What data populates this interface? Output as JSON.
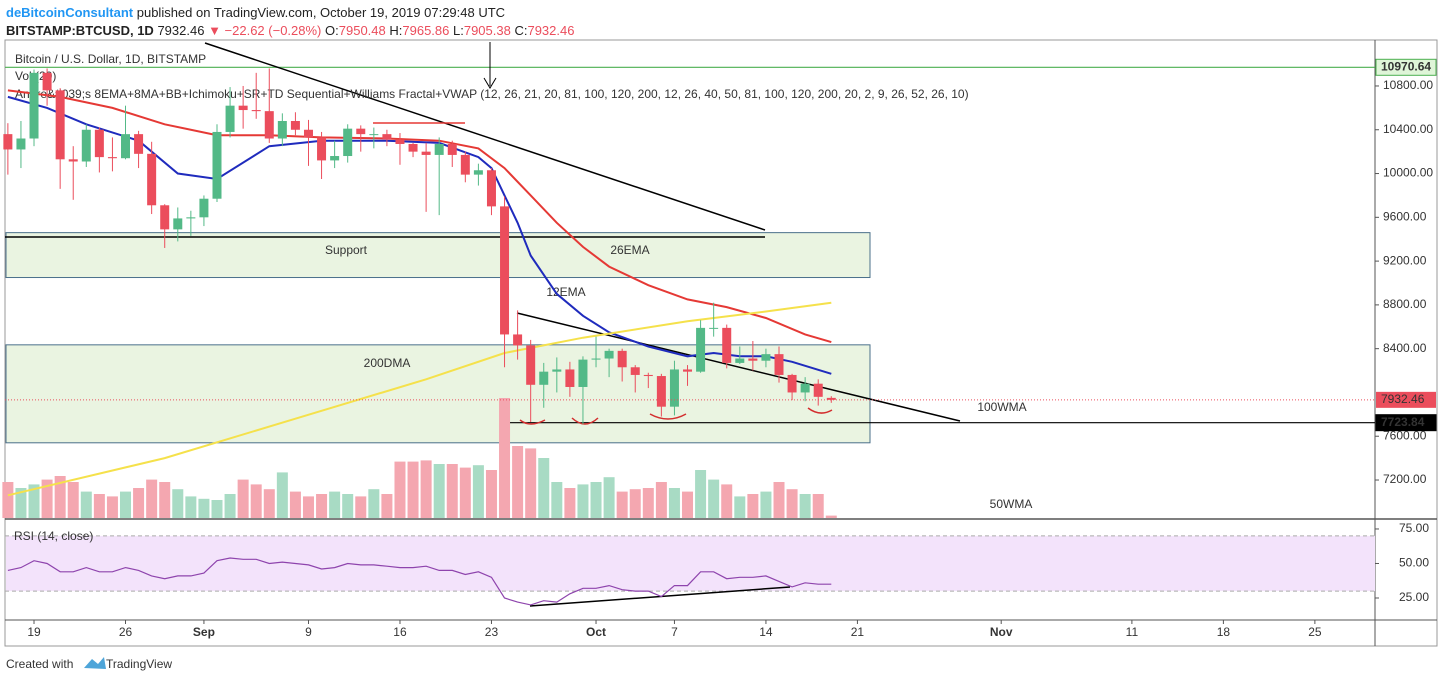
{
  "header": {
    "author": "deBitcoinConsultant",
    "published": "published on TradingView.com, October 19, 2019 07:29:48 UTC",
    "symbol": "BITSTAMP:BTCUSD, 1D",
    "last": "7932.46",
    "change": "▼ −22.62 (−0.28%)",
    "ohlc": [
      {
        "k": "O:",
        "v": "7950.48"
      },
      {
        "k": "H:",
        "v": "7965.86"
      },
      {
        "k": "L:",
        "v": "7905.38"
      },
      {
        "k": "C:",
        "v": "7932.46"
      }
    ]
  },
  "legend": [
    "Bitcoin / U.S. Dollar, 1D, BITSTAMP",
    "Vol (20)",
    "Andre&#039;s 8EMA+8MA+BB+Ichimoku+SR+TD Sequential+Williams Fractal+VWAP (12, 26, 21, 20, 81, 100, 120, 200, 12, 26, 40, 50, 81, 100, 120, 200, 20, 2, 9, 26, 52, 26, 10)"
  ],
  "footer": {
    "created": "Created with",
    "brand": "TradingView"
  },
  "chart_data": {
    "type": "candlestick",
    "up_color": "#53b987",
    "down_color": "#eb4d5c",
    "x": [
      -2,
      -1,
      0,
      1,
      2,
      3,
      4,
      5,
      6,
      7,
      8,
      9,
      10,
      11,
      12,
      13,
      14,
      15,
      16,
      17,
      18,
      19,
      20,
      21,
      22,
      23,
      24,
      25,
      26,
      27,
      28,
      29,
      30,
      31,
      32,
      33,
      34,
      35,
      36,
      37,
      38,
      39,
      40,
      41,
      42,
      43,
      44,
      45,
      46,
      47,
      48,
      49,
      50,
      51,
      52,
      53,
      54,
      55,
      56,
      57,
      58,
      59,
      60,
      61
    ],
    "ohlc": [
      [
        10360,
        10460,
        9990,
        10220
      ],
      [
        10220,
        10480,
        10050,
        10320
      ],
      [
        10320,
        10950,
        10250,
        10920
      ],
      [
        10920,
        10960,
        10620,
        10760
      ],
      [
        10760,
        10780,
        9860,
        10130
      ],
      [
        10130,
        10250,
        9760,
        10110
      ],
      [
        10110,
        10450,
        10060,
        10400
      ],
      [
        10400,
        10420,
        10010,
        10150
      ],
      [
        10150,
        10330,
        10020,
        10140
      ],
      [
        10140,
        10620,
        10130,
        10360
      ],
      [
        10360,
        10390,
        10050,
        10180
      ],
      [
        10180,
        10290,
        9630,
        9710
      ],
      [
        9710,
        9720,
        9320,
        9490
      ],
      [
        9490,
        9690,
        9380,
        9590
      ],
      [
        9590,
        9660,
        9430,
        9600
      ],
      [
        9600,
        9800,
        9520,
        9770
      ],
      [
        9770,
        10450,
        9740,
        10380
      ],
      [
        10380,
        10790,
        10330,
        10620
      ],
      [
        10620,
        10800,
        10410,
        10580
      ],
      [
        10580,
        10920,
        10500,
        10570
      ],
      [
        10570,
        10960,
        10280,
        10320
      ],
      [
        10320,
        10550,
        10250,
        10480
      ],
      [
        10480,
        10560,
        10350,
        10400
      ],
      [
        10400,
        10490,
        10070,
        10330
      ],
      [
        10330,
        10380,
        9950,
        10120
      ],
      [
        10120,
        10300,
        10050,
        10160
      ],
      [
        10160,
        10450,
        10100,
        10410
      ],
      [
        10410,
        10440,
        10200,
        10360
      ],
      [
        10360,
        10420,
        10230,
        10360
      ],
      [
        10360,
        10400,
        10250,
        10310
      ],
      [
        10310,
        10370,
        10080,
        10270
      ],
      [
        10270,
        10280,
        10150,
        10200
      ],
      [
        10200,
        10280,
        9650,
        10170
      ],
      [
        10170,
        10330,
        9620,
        10270
      ],
      [
        10270,
        10300,
        10060,
        10170
      ],
      [
        10170,
        10200,
        9920,
        9990
      ],
      [
        9990,
        10090,
        9890,
        10030
      ],
      [
        10030,
        10050,
        9620,
        9700
      ],
      [
        9700,
        9790,
        8230,
        8530
      ],
      [
        8530,
        8750,
        8300,
        8430
      ],
      [
        8430,
        8480,
        7730,
        8070
      ],
      [
        8070,
        8270,
        7860,
        8190
      ],
      [
        8190,
        8320,
        8000,
        8210
      ],
      [
        8210,
        8280,
        7960,
        8050
      ],
      [
        8050,
        8330,
        7710,
        8300
      ],
      [
        8300,
        8510,
        8230,
        8310
      ],
      [
        8310,
        8400,
        8140,
        8380
      ],
      [
        8380,
        8400,
        8100,
        8230
      ],
      [
        8230,
        8250,
        8000,
        8160
      ],
      [
        8160,
        8180,
        8040,
        8150
      ],
      [
        8150,
        8170,
        7780,
        7870
      ],
      [
        7870,
        8290,
        7790,
        8210
      ],
      [
        8210,
        8250,
        8060,
        8190
      ],
      [
        8190,
        8660,
        8180,
        8590
      ],
      [
        8590,
        8820,
        8510,
        8590
      ],
      [
        8590,
        8620,
        8220,
        8270
      ],
      [
        8270,
        8420,
        8260,
        8310
      ],
      [
        8310,
        8470,
        8200,
        8290
      ],
      [
        8290,
        8400,
        8230,
        8350
      ],
      [
        8350,
        8420,
        8090,
        8160
      ],
      [
        8160,
        8170,
        7930,
        8000
      ],
      [
        8000,
        8140,
        7920,
        8080
      ],
      [
        8080,
        8120,
        7880,
        7960
      ],
      [
        7950.48,
        7965.86,
        7905.38,
        7932.46
      ]
    ],
    "volume": [
      30,
      25,
      28,
      32,
      35,
      30,
      22,
      20,
      18,
      22,
      25,
      32,
      30,
      24,
      18,
      16,
      15,
      20,
      32,
      28,
      24,
      38,
      22,
      18,
      20,
      22,
      20,
      18,
      24,
      20,
      47,
      47,
      48,
      45,
      45,
      42,
      44,
      40,
      100,
      60,
      58,
      50,
      30,
      25,
      28,
      30,
      34,
      22,
      24,
      25,
      30,
      25,
      22,
      40,
      32,
      28,
      18,
      20,
      22,
      30,
      24,
      20,
      20,
      2
    ],
    "rsi": [
      45,
      47,
      52,
      50,
      44,
      44,
      47,
      44,
      44,
      47,
      45,
      41,
      39,
      41,
      41,
      43,
      52,
      54,
      53,
      53,
      50,
      51,
      50,
      49,
      46,
      47,
      50,
      49,
      49,
      48,
      47,
      47,
      48,
      45,
      45,
      42,
      44,
      40,
      25,
      22,
      20,
      23,
      22,
      28,
      32,
      32,
      34,
      31,
      30,
      30,
      26,
      34,
      34,
      44,
      44,
      39,
      40,
      40,
      41,
      37,
      33,
      36,
      35,
      35
    ],
    "series": [
      {
        "name": "12EMA",
        "color": "#1f2bbd",
        "x": [
          -2,
          1,
          4,
          8,
          11,
          14,
          18,
          22,
          27,
          31,
          34,
          35,
          36,
          37,
          38,
          40,
          42,
          44,
          47,
          50,
          52,
          54,
          56,
          58,
          61
        ],
        "values": [
          10700,
          10600,
          10450,
          10300,
          10000,
          9950,
          10250,
          10300,
          10300,
          10280,
          10150,
          10050,
          9800,
          9550,
          9250,
          8900,
          8700,
          8550,
          8420,
          8330,
          8360,
          8330,
          8330,
          8280,
          8170
        ]
      },
      {
        "name": "26EMA",
        "color": "#e53935",
        "x": [
          -2,
          2,
          6,
          10,
          14,
          18,
          22,
          27,
          31,
          34,
          36,
          38,
          40,
          42,
          44,
          47,
          50,
          53,
          56,
          59,
          61
        ],
        "values": [
          10760,
          10700,
          10600,
          10450,
          10350,
          10350,
          10330,
          10320,
          10300,
          10230,
          10050,
          9800,
          9550,
          9330,
          9150,
          8980,
          8850,
          8780,
          8680,
          8530,
          8460
        ]
      },
      {
        "name": "200DMA",
        "color": "#f5e14b",
        "x": [
          -2,
          10,
          20,
          30,
          36,
          42,
          50,
          56,
          61
        ],
        "values": [
          7060,
          7400,
          7760,
          8120,
          8360,
          8500,
          8650,
          8740,
          8820
        ]
      }
    ],
    "zones": [
      {
        "label": "Support",
        "range": [
          9050,
          9460
        ]
      },
      {
        "label": "200DMA",
        "range": [
          7540,
          8435
        ]
      }
    ],
    "hlines": [
      {
        "value": 10970.64,
        "label": "10970.64",
        "color": "#4caf50"
      },
      {
        "value": 7723.84,
        "label": "7723.84",
        "color": "#000000"
      }
    ],
    "annotations": [
      "100WMA",
      "50WMA"
    ],
    "rsi_title": "RSI (14, close)",
    "rsi_band": [
      30,
      70
    ],
    "xlim": [
      -2.22,
      102.6
    ],
    "ylim": [
      6853,
      11220
    ],
    "rsi_lim": [
      10.5,
      81.5
    ],
    "xticks": [
      {
        "value": 0,
        "label": "19"
      },
      {
        "value": 7,
        "label": "26"
      },
      {
        "value": 13,
        "label": "Sep"
      },
      {
        "value": 21,
        "label": "9"
      },
      {
        "value": 28,
        "label": "16"
      },
      {
        "value": 35,
        "label": "23"
      },
      {
        "value": 43,
        "label": "Oct"
      },
      {
        "value": 49,
        "label": "7"
      },
      {
        "value": 56,
        "label": "14"
      },
      {
        "value": 63,
        "label": "21"
      },
      {
        "value": 74,
        "label": "Nov"
      },
      {
        "value": 84,
        "label": "11"
      },
      {
        "value": 91,
        "label": "18"
      },
      {
        "value": 98,
        "label": "25"
      }
    ],
    "yticks": [
      {
        "value": 10800,
        "label": "10800.00"
      },
      {
        "value": 10400,
        "label": "10400.00"
      },
      {
        "value": 10000,
        "label": "10000.00"
      },
      {
        "value": 9600,
        "label": "9600.00"
      },
      {
        "value": 9200,
        "label": "9200.00"
      },
      {
        "value": 8800,
        "label": "8800.00"
      },
      {
        "value": 8400,
        "label": "8400.00"
      },
      {
        "value": 7600,
        "label": "7600.00"
      },
      {
        "value": 7200,
        "label": "7200.00"
      }
    ],
    "rsi_ticks": [
      {
        "value": 75,
        "label": "75.00"
      },
      {
        "value": 50,
        "label": "50.00"
      },
      {
        "value": 25,
        "label": "25.00"
      }
    ]
  }
}
